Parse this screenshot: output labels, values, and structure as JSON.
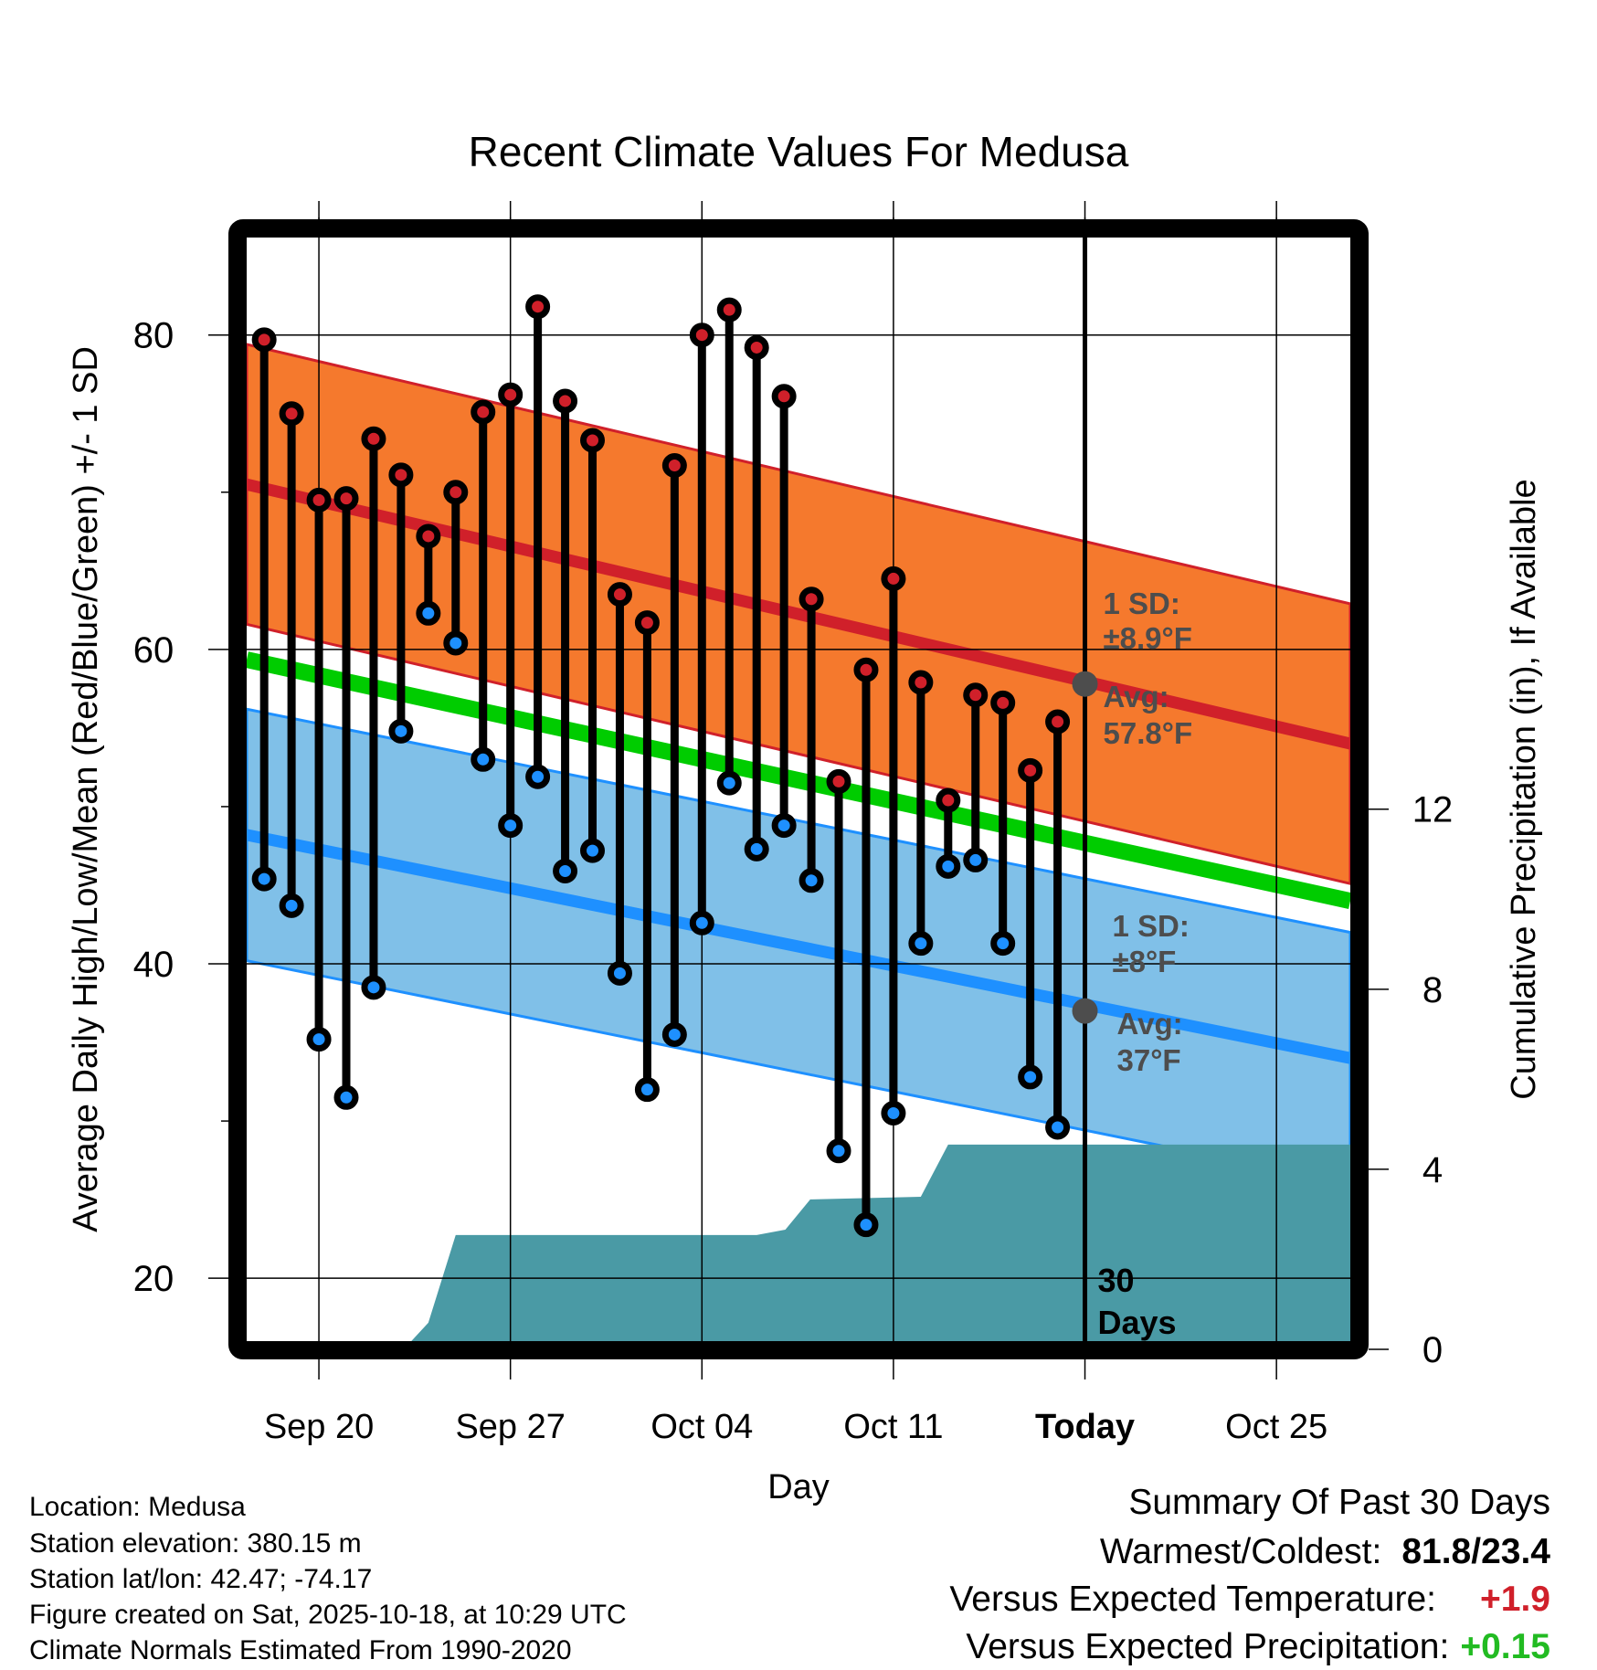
{
  "chart_data": {
    "type": "line",
    "title": "Recent Climate Values For Medusa",
    "xlabel": "Day",
    "ylabel": "Average Daily High/Low/Mean (Red/Blue/Green) +/- 1 SD",
    "y2label": "Cumulative Precipitation (in), If Available",
    "ylim": [
      16,
      86.2
    ],
    "y2lim": [
      0,
      24.7
    ],
    "yticks": [
      20,
      40,
      60,
      80
    ],
    "y2ticks": [
      0,
      4,
      8,
      12
    ],
    "x_day_range": [
      -2.64,
      37.7
    ],
    "x_day_origin": "Sep 20",
    "xticks": [
      {
        "day": 0,
        "label": "Sep 20"
      },
      {
        "day": 7,
        "label": "Sep 27"
      },
      {
        "day": 14,
        "label": "Oct 04"
      },
      {
        "day": 21,
        "label": "Oct 11"
      },
      {
        "day": 28,
        "label": "Today"
      },
      {
        "day": 35,
        "label": "Oct 25"
      }
    ],
    "grid": true,
    "today_day": 28,
    "days": [
      "Sep 18",
      "Sep 19",
      "Sep 20",
      "Sep 21",
      "Sep 22",
      "Sep 23",
      "Sep 24",
      "Sep 25",
      "Sep 26",
      "Sep 27",
      "Sep 28",
      "Sep 29",
      "Sep 30",
      "Oct 01",
      "Oct 02",
      "Oct 03",
      "Oct 04",
      "Oct 05",
      "Oct 06",
      "Oct 07",
      "Oct 08",
      "Oct 09",
      "Oct 10",
      "Oct 11",
      "Oct 12",
      "Oct 13",
      "Oct 14",
      "Oct 15",
      "Oct 16",
      "Oct 17"
    ],
    "series": [
      {
        "name": "Daily High",
        "color": "#d0202a",
        "values": [
          79.7,
          75.0,
          69.5,
          69.6,
          73.4,
          71.1,
          67.2,
          70.0,
          75.1,
          76.2,
          81.8,
          75.8,
          73.3,
          63.5,
          61.7,
          71.7,
          80.0,
          81.6,
          79.2,
          76.1,
          63.2,
          51.6,
          58.7,
          64.5,
          57.9,
          50.4,
          57.1,
          56.6,
          52.3,
          55.4
        ]
      },
      {
        "name": "Daily Low",
        "color": "#1e90ff",
        "values": [
          45.4,
          43.7,
          35.2,
          31.5,
          38.5,
          54.8,
          62.3,
          60.4,
          53.0,
          48.8,
          51.9,
          45.9,
          47.2,
          39.4,
          32.0,
          35.5,
          42.6,
          51.5,
          47.3,
          48.8,
          45.3,
          28.1,
          23.4,
          30.5,
          41.3,
          46.2,
          46.6,
          41.3,
          32.8,
          29.6
        ]
      }
    ],
    "normals": {
      "high_mean": {
        "start": 70.5,
        "today": 57.8,
        "end": 54.0,
        "color": "#d0202a"
      },
      "high_sd": 8.9,
      "high_band_color": "#f5792d",
      "low_mean": {
        "start": 48.2,
        "today": 37.0,
        "end": 34.0,
        "color": "#1e90ff"
      },
      "low_sd": 8.0,
      "low_band_color": "#80c0e8",
      "mean_line_color": "#00cc00"
    },
    "precipitation": {
      "color": "#4a9aa5",
      "points": [
        {
          "day": 3.1,
          "value": 0.0
        },
        {
          "day": 4.0,
          "value": 0.59
        },
        {
          "day": 5.0,
          "value": 2.54
        },
        {
          "day": 16.0,
          "value": 2.54
        },
        {
          "day": 17.05,
          "value": 2.66
        },
        {
          "day": 17.96,
          "value": 3.33
        },
        {
          "day": 22.0,
          "value": 3.39
        },
        {
          "day": 23.0,
          "value": 4.55
        },
        {
          "day": 37.7,
          "value": 4.55
        }
      ]
    },
    "annotations": {
      "high_sd_line1": "1 SD:",
      "high_sd_line2": "±8.9°F",
      "high_avg_line1": "Avg:",
      "high_avg_line2": "57.8°F",
      "low_sd_line1": "1 SD:",
      "low_sd_line2": "±8°F",
      "low_avg_line1": "Avg:",
      "low_avg_line2": "37°F",
      "window_line1": "30",
      "window_line2": "Days"
    }
  },
  "footer": {
    "location": "Location: Medusa",
    "elevation": "Station elevation: 380.15 m",
    "latlon": "Station lat/lon: 42.47; -74.17",
    "created": "Figure created on Sat, 2025-10-18, at 10:29 UTC",
    "normals": "Climate Normals Estimated From 1990-2020"
  },
  "summary": {
    "heading": "Summary Of Past 30 Days",
    "warm_cold_label": "Warmest/Coldest:",
    "warm_cold_value": "81.8/23.4",
    "temp_label": "Versus Expected Temperature:",
    "temp_value": "+1.9",
    "temp_color": "#d0202a",
    "precip_label": "Versus Expected Precipitation:",
    "precip_value": "+0.15",
    "precip_color": "#22bb22"
  }
}
